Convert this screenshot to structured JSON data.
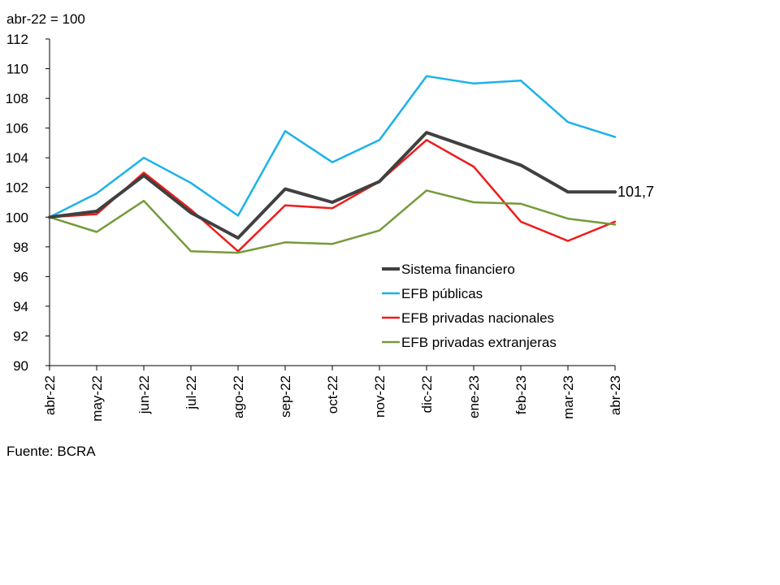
{
  "unit_label": "abr-22 = 100",
  "source": "Fuente: BCRA",
  "chart_data": {
    "type": "line",
    "title": "",
    "xlabel": "",
    "ylabel": "abr-22 = 100",
    "ylim": [
      90,
      112
    ],
    "ytick_step": 2,
    "grid": false,
    "legend_position": "center-right",
    "categories": [
      "abr-22",
      "may-22",
      "jun-22",
      "jul-22",
      "ago-22",
      "sep-22",
      "oct-22",
      "nov-22",
      "dic-22",
      "ene-23",
      "feb-23",
      "mar-23",
      "abr-23"
    ],
    "series": [
      {
        "name": "Sistema financiero",
        "color": "#404040",
        "width": "thick",
        "values": [
          100,
          100.4,
          102.8,
          100.3,
          98.6,
          101.9,
          101.0,
          102.4,
          105.7,
          104.6,
          103.5,
          101.7,
          101.7
        ]
      },
      {
        "name": "EFB públicas",
        "color": "#1bb2e8",
        "width": "normal",
        "values": [
          100,
          101.6,
          104.0,
          102.3,
          100.1,
          105.8,
          103.7,
          105.2,
          109.5,
          109.0,
          109.2,
          106.4,
          105.4
        ]
      },
      {
        "name": "EFB privadas nacionales",
        "color": "#ee1c1c",
        "width": "normal",
        "values": [
          100,
          100.2,
          103.0,
          100.5,
          97.7,
          100.8,
          100.6,
          102.4,
          105.2,
          103.4,
          99.7,
          98.4,
          99.7
        ]
      },
      {
        "name": "EFB privadas extranjeras",
        "color": "#769a3a",
        "width": "normal",
        "values": [
          100,
          99.0,
          101.1,
          97.7,
          97.6,
          98.3,
          98.2,
          99.1,
          101.8,
          101.0,
          100.9,
          99.9,
          99.5
        ]
      }
    ],
    "annotations": [
      {
        "text": "101,7",
        "series": "Sistema financiero",
        "category": "abr-23"
      }
    ]
  }
}
